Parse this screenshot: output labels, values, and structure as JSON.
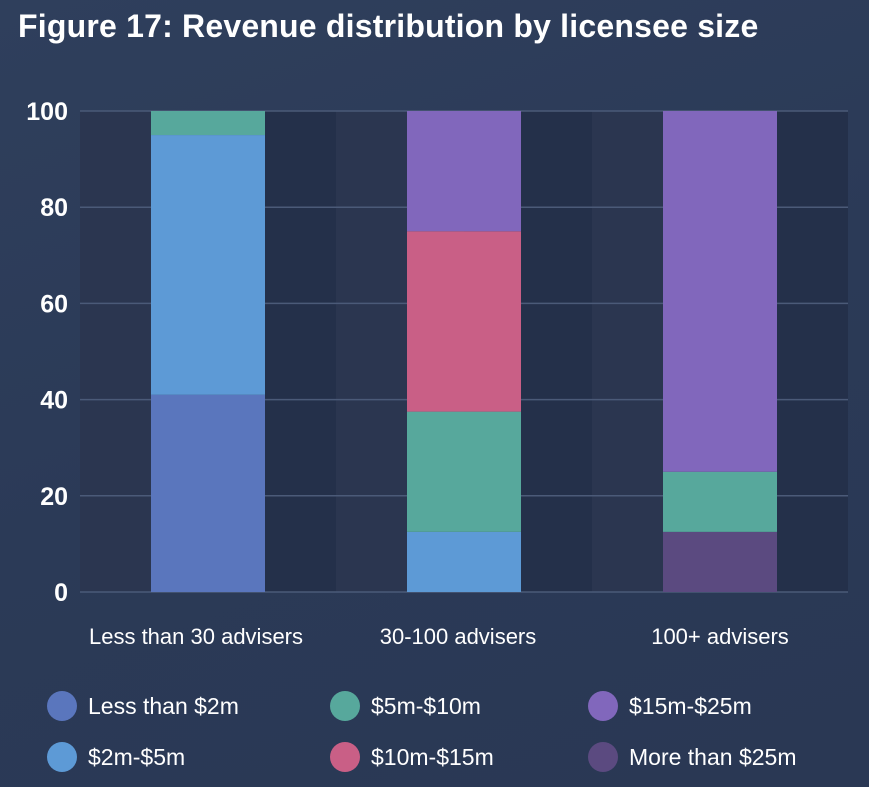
{
  "title": "Figure 17: Revenue distribution by licensee size",
  "chart_data": {
    "type": "bar",
    "stacked": true,
    "title": "Figure 17: Revenue distribution by licensee size",
    "xlabel": "",
    "ylabel": "",
    "ylim": [
      0,
      100
    ],
    "yticks": [
      0,
      20,
      40,
      60,
      80,
      100
    ],
    "grid": true,
    "legend_position": "bottom",
    "categories": [
      "Less than 30 advisers",
      "30-100 advisers",
      "100+ advisers"
    ],
    "series": [
      {
        "name": "Less than $2m",
        "color": "#5a76bd",
        "values": [
          41,
          0,
          0
        ]
      },
      {
        "name": "$2m-$5m",
        "color": "#5d9ad6",
        "values": [
          54,
          12.5,
          0
        ]
      },
      {
        "name": "$5m-$10m",
        "color": "#57a89c",
        "values": [
          5,
          25,
          12.5
        ]
      },
      {
        "name": "$10m-$15m",
        "color": "#c95f86",
        "values": [
          0,
          37.5,
          0
        ]
      },
      {
        "name": "$15m-$25m",
        "color": "#8167bc",
        "values": [
          0,
          25,
          75
        ]
      },
      {
        "name": "More than $25m",
        "color": "#5b4a80",
        "values": [
          0,
          0,
          12.5
        ]
      }
    ],
    "stack_order": [
      [
        "Less than $2m",
        "$2m-$5m",
        "$5m-$10m"
      ],
      [
        "$2m-$5m",
        "$5m-$10m",
        "$10m-$15m",
        "$15m-$25m"
      ],
      [
        "More than $25m",
        "$5m-$10m",
        "$15m-$25m"
      ]
    ],
    "legend_order": [
      "Less than $2m",
      "$5m-$10m",
      "$15m-$25m",
      "$2m-$5m",
      "$10m-$15m",
      "More than $25m"
    ]
  },
  "colors": {
    "plot_band_light": "#2b3650",
    "plot_band_dark": "#24304a",
    "gridline": "#4b5a78"
  }
}
